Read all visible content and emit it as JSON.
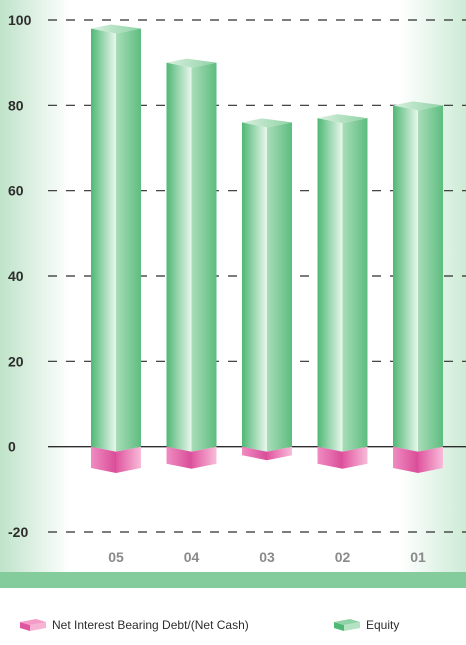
{
  "chart_data": {
    "type": "bar",
    "categories": [
      "05",
      "04",
      "03",
      "02",
      "01"
    ],
    "series": [
      {
        "name": "Equity",
        "values": [
          98,
          90,
          76,
          77,
          80
        ],
        "color": "#7fcc98"
      },
      {
        "name": "Net Interest Bearing Debt/(Net Cash)",
        "values": [
          -5,
          -4,
          -2,
          -4,
          -5
        ],
        "color": "#e86bb0"
      }
    ],
    "ylim": [
      -20,
      100
    ],
    "yticks": [
      "100",
      "80",
      "60",
      "40",
      "20",
      "0",
      "-20"
    ],
    "grid": "dashed horizontal",
    "legend_position": "bottom"
  },
  "legend": {
    "debt_label": "Net Interest Bearing Debt/(Net Cash)",
    "equity_label": "Equity"
  }
}
